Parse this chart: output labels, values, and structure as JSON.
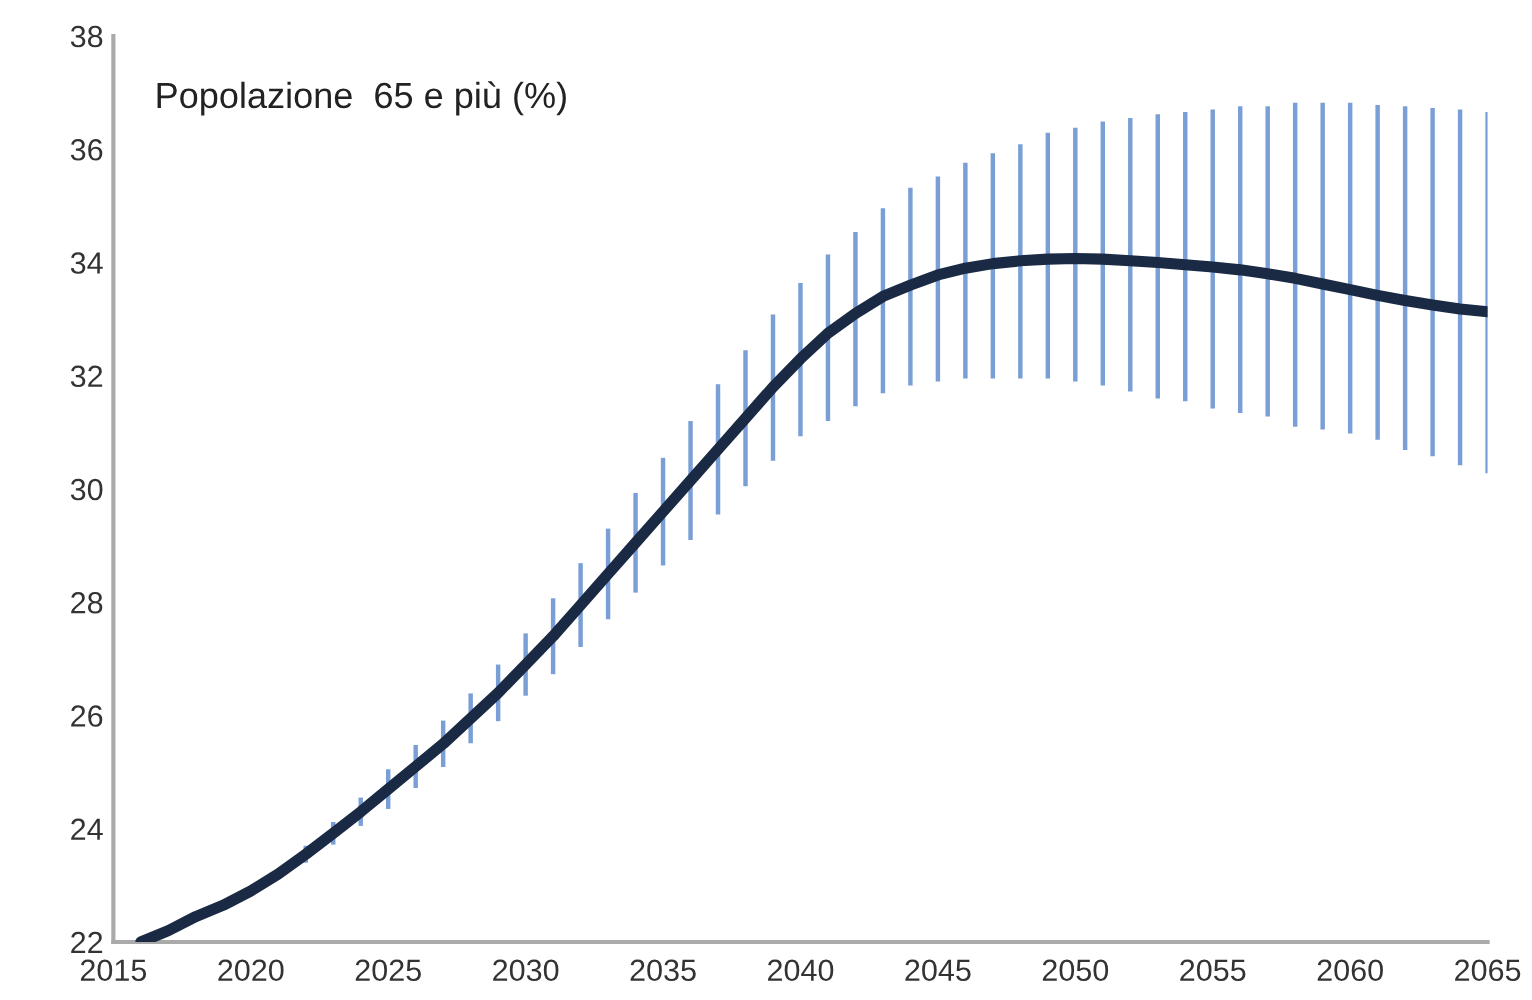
{
  "chart_data": {
    "type": "line",
    "title": "Popolazione  65 e più (%)",
    "x": [
      2016,
      2017,
      2018,
      2019,
      2020,
      2021,
      2022,
      2023,
      2024,
      2025,
      2026,
      2027,
      2028,
      2029,
      2030,
      2031,
      2032,
      2033,
      2034,
      2035,
      2036,
      2037,
      2038,
      2039,
      2040,
      2041,
      2042,
      2043,
      2044,
      2045,
      2046,
      2047,
      2048,
      2049,
      2050,
      2051,
      2052,
      2053,
      2054,
      2055,
      2056,
      2057,
      2058,
      2059,
      2060,
      2061,
      2062,
      2063,
      2064,
      2065
    ],
    "series": [
      {
        "color": "#1b2a44",
        "values": [
          22.0,
          22.2,
          22.45,
          22.65,
          22.9,
          23.2,
          23.55,
          23.92,
          24.3,
          24.7,
          25.1,
          25.5,
          25.95,
          26.4,
          26.9,
          27.4,
          27.95,
          28.5,
          29.05,
          29.6,
          30.15,
          30.7,
          31.25,
          31.8,
          32.3,
          32.75,
          33.1,
          33.4,
          33.6,
          33.78,
          33.9,
          33.98,
          34.03,
          34.06,
          34.07,
          34.06,
          34.03,
          34.0,
          33.96,
          33.92,
          33.87,
          33.8,
          33.72,
          33.62,
          33.52,
          33.42,
          33.33,
          33.25,
          33.18,
          33.13
        ],
        "errors": [
          null,
          null,
          null,
          null,
          null,
          null,
          0.15,
          0.2,
          0.25,
          0.35,
          0.38,
          0.41,
          0.44,
          0.5,
          0.55,
          0.67,
          0.74,
          0.8,
          0.88,
          0.95,
          1.05,
          1.15,
          1.2,
          [
            30.5,
            33.08
          ],
          [
            30.93,
            33.64
          ],
          [
            31.2,
            34.14
          ],
          [
            31.46,
            34.54
          ],
          [
            31.69,
            34.96
          ],
          [
            31.83,
            35.32
          ],
          [
            31.9,
            35.52
          ],
          [
            31.95,
            35.76
          ],
          [
            31.95,
            35.93
          ],
          [
            31.95,
            36.09
          ],
          [
            31.95,
            36.29
          ],
          [
            31.9,
            36.38
          ],
          [
            31.83,
            36.49
          ],
          [
            31.72,
            36.55
          ],
          [
            31.6,
            36.62
          ],
          [
            31.55,
            36.66
          ],
          [
            31.42,
            36.7
          ],
          [
            31.34,
            36.76
          ],
          [
            31.28,
            36.76
          ],
          [
            31.1,
            36.82
          ],
          [
            31.05,
            36.82
          ],
          [
            30.98,
            36.82
          ],
          [
            30.87,
            36.78
          ],
          [
            30.69,
            36.76
          ],
          [
            30.58,
            36.73
          ],
          [
            30.42,
            36.7
          ],
          [
            30.28,
            36.66
          ]
        ]
      }
    ],
    "xlim": [
      2015,
      2065
    ],
    "xticks": [
      2015,
      2020,
      2025,
      2030,
      2035,
      2040,
      2045,
      2050,
      2055,
      2060,
      2065
    ],
    "ylim": [
      22,
      38
    ],
    "yticks": [
      22,
      24,
      26,
      28,
      30,
      32,
      34,
      36,
      38
    ],
    "grid": false,
    "legend": false,
    "marker": "none",
    "line_style": "solid"
  }
}
